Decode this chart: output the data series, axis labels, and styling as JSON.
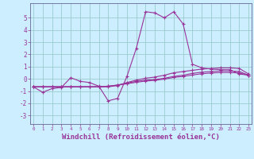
{
  "bg_color": "#cceeff",
  "grid_color": "#99cccc",
  "line_color": "#993399",
  "xlabel": "Windchill (Refroidissement éolien,°C)",
  "xlabel_fontsize": 6.5,
  "ytick_vals": [
    -3,
    -2,
    -1,
    0,
    1,
    2,
    3,
    4,
    5
  ],
  "ylim": [
    -3.7,
    6.2
  ],
  "xlim": [
    -0.3,
    23.3
  ],
  "series1": [
    [
      0,
      -0.65
    ],
    [
      1,
      -1.1
    ],
    [
      2,
      -0.8
    ],
    [
      3,
      -0.7
    ],
    [
      4,
      0.1
    ],
    [
      5,
      -0.2
    ],
    [
      6,
      -0.3
    ],
    [
      7,
      -0.6
    ],
    [
      8,
      -1.8
    ],
    [
      9,
      -1.6
    ],
    [
      10,
      0.2
    ],
    [
      11,
      2.5
    ],
    [
      12,
      5.5
    ],
    [
      13,
      5.4
    ],
    [
      14,
      5.0
    ],
    [
      15,
      5.5
    ],
    [
      16,
      4.5
    ],
    [
      17,
      1.2
    ],
    [
      18,
      0.9
    ],
    [
      19,
      0.8
    ],
    [
      20,
      0.75
    ],
    [
      21,
      0.75
    ],
    [
      22,
      0.4
    ],
    [
      23,
      0.3
    ]
  ],
  "series2": [
    [
      0,
      -0.65
    ],
    [
      1,
      -0.65
    ],
    [
      2,
      -0.65
    ],
    [
      3,
      -0.65
    ],
    [
      4,
      -0.65
    ],
    [
      5,
      -0.65
    ],
    [
      6,
      -0.65
    ],
    [
      7,
      -0.65
    ],
    [
      8,
      -0.65
    ],
    [
      9,
      -0.55
    ],
    [
      10,
      -0.3
    ],
    [
      11,
      -0.1
    ],
    [
      12,
      0.05
    ],
    [
      13,
      0.15
    ],
    [
      14,
      0.3
    ],
    [
      15,
      0.5
    ],
    [
      16,
      0.6
    ],
    [
      17,
      0.7
    ],
    [
      18,
      0.8
    ],
    [
      19,
      0.85
    ],
    [
      20,
      0.9
    ],
    [
      21,
      0.9
    ],
    [
      22,
      0.85
    ],
    [
      23,
      0.4
    ]
  ],
  "series3": [
    [
      0,
      -0.65
    ],
    [
      1,
      -0.65
    ],
    [
      2,
      -0.65
    ],
    [
      3,
      -0.65
    ],
    [
      4,
      -0.65
    ],
    [
      5,
      -0.65
    ],
    [
      6,
      -0.65
    ],
    [
      7,
      -0.65
    ],
    [
      8,
      -0.6
    ],
    [
      9,
      -0.5
    ],
    [
      10,
      -0.35
    ],
    [
      11,
      -0.2
    ],
    [
      12,
      -0.1
    ],
    [
      13,
      -0.05
    ],
    [
      14,
      0.05
    ],
    [
      15,
      0.2
    ],
    [
      16,
      0.3
    ],
    [
      17,
      0.45
    ],
    [
      18,
      0.55
    ],
    [
      19,
      0.6
    ],
    [
      20,
      0.65
    ],
    [
      21,
      0.65
    ],
    [
      22,
      0.6
    ],
    [
      23,
      0.3
    ]
  ],
  "series4": [
    [
      0,
      -0.65
    ],
    [
      1,
      -0.65
    ],
    [
      2,
      -0.65
    ],
    [
      3,
      -0.65
    ],
    [
      4,
      -0.65
    ],
    [
      5,
      -0.65
    ],
    [
      6,
      -0.65
    ],
    [
      7,
      -0.65
    ],
    [
      8,
      -0.6
    ],
    [
      9,
      -0.52
    ],
    [
      10,
      -0.4
    ],
    [
      11,
      -0.28
    ],
    [
      12,
      -0.18
    ],
    [
      13,
      -0.12
    ],
    [
      14,
      -0.02
    ],
    [
      15,
      0.12
    ],
    [
      16,
      0.2
    ],
    [
      17,
      0.32
    ],
    [
      18,
      0.42
    ],
    [
      19,
      0.48
    ],
    [
      20,
      0.52
    ],
    [
      21,
      0.52
    ],
    [
      22,
      0.48
    ],
    [
      23,
      0.3
    ]
  ]
}
